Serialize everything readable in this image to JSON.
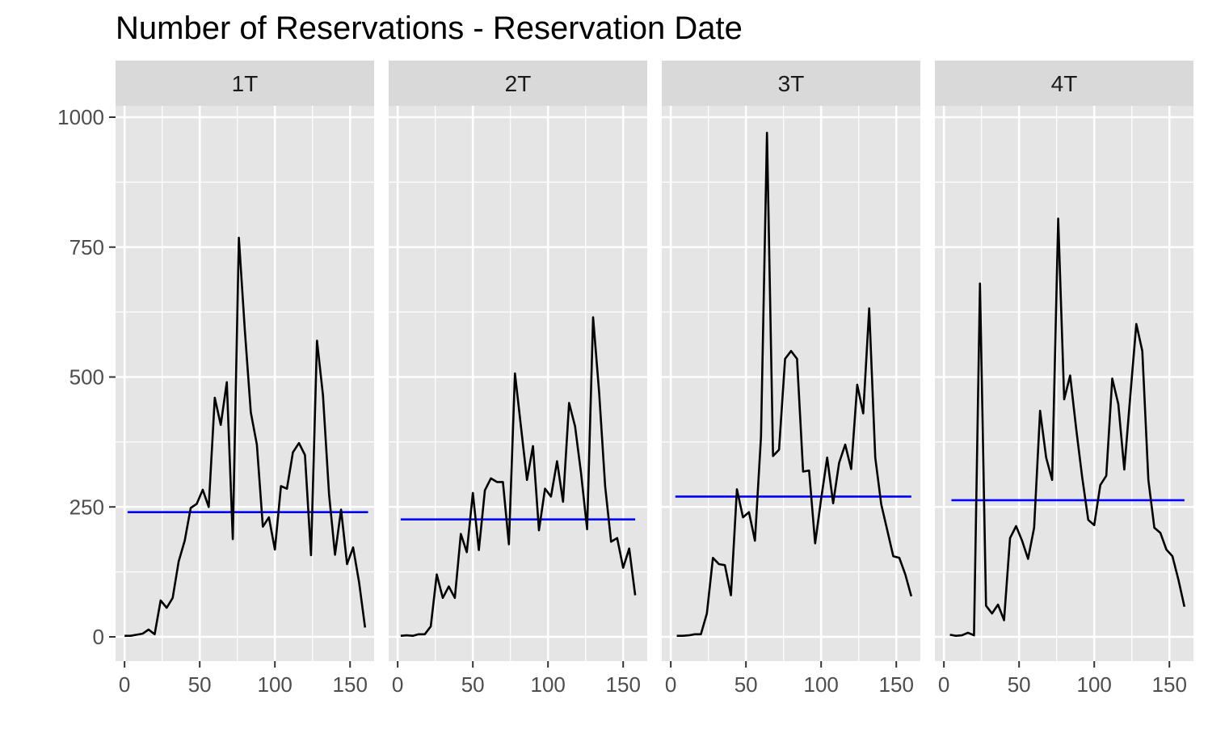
{
  "chart_data": {
    "type": "line",
    "title": "Number of Reservations - Reservation Date",
    "xlabel": "",
    "ylabel": "",
    "xlim": [
      -6,
      166
    ],
    "ylim": [
      -45,
      1000
    ],
    "x_ticks": [
      0,
      50,
      100,
      150
    ],
    "y_ticks": [
      0,
      250,
      500,
      750,
      1000
    ],
    "grid": true,
    "colors": {
      "panel_bg": "#E5E5E5",
      "strip_bg": "#D9D9D9",
      "grid": "#FFFFFF",
      "series_line": "#000000",
      "mean_line": "#0000FF",
      "text": "#4D4D4D",
      "title": "#000000"
    },
    "panels": [
      {
        "label": "1T",
        "mean": 240,
        "mean_x": [
          2,
          162
        ],
        "x": [
          0,
          4,
          8,
          12,
          16,
          20,
          24,
          28,
          32,
          36,
          40,
          44,
          48,
          52,
          56,
          60,
          64,
          68,
          72,
          76,
          80,
          84,
          88,
          92,
          96,
          100,
          104,
          108,
          112,
          116,
          120,
          124,
          128,
          132,
          136,
          140,
          144,
          148,
          152,
          156,
          160
        ],
        "y": [
          2,
          2,
          4,
          6,
          14,
          5,
          70,
          56,
          75,
          145,
          185,
          248,
          256,
          283,
          250,
          460,
          408,
          490,
          188,
          768,
          590,
          432,
          370,
          212,
          230,
          168,
          290,
          285,
          355,
          373,
          350,
          157,
          570,
          465,
          275,
          158,
          245,
          140,
          172,
          105,
          18
        ]
      },
      {
        "label": "2T",
        "mean": 226,
        "mean_x": [
          2,
          158
        ],
        "x": [
          2,
          6,
          10,
          14,
          18,
          22,
          26,
          30,
          34,
          38,
          42,
          46,
          50,
          54,
          58,
          62,
          66,
          70,
          74,
          78,
          82,
          86,
          90,
          94,
          98,
          102,
          106,
          110,
          114,
          118,
          122,
          126,
          130,
          134,
          138,
          142,
          146,
          150,
          154,
          158
        ],
        "y": [
          2,
          3,
          2,
          5,
          5,
          20,
          120,
          75,
          97,
          75,
          198,
          163,
          277,
          167,
          282,
          305,
          298,
          298,
          178,
          507,
          405,
          302,
          367,
          205,
          285,
          270,
          338,
          260,
          450,
          405,
          315,
          207,
          615,
          470,
          290,
          183,
          190,
          133,
          170,
          80
        ]
      },
      {
        "label": "3T",
        "mean": 270,
        "mean_x": [
          3,
          160
        ],
        "x": [
          4,
          8,
          12,
          16,
          20,
          24,
          28,
          32,
          36,
          40,
          44,
          48,
          52,
          56,
          60,
          64,
          68,
          72,
          76,
          80,
          84,
          88,
          92,
          96,
          100,
          104,
          108,
          112,
          116,
          120,
          124,
          128,
          132,
          136,
          140,
          144,
          148,
          152,
          156,
          160
        ],
        "y": [
          2,
          2,
          3,
          5,
          5,
          45,
          152,
          140,
          138,
          80,
          284,
          230,
          240,
          185,
          385,
          970,
          348,
          360,
          535,
          550,
          535,
          318,
          320,
          180,
          265,
          345,
          257,
          335,
          370,
          323,
          485,
          430,
          632,
          345,
          255,
          205,
          155,
          152,
          120,
          78
        ]
      },
      {
        "label": "4T",
        "mean": 263,
        "mean_x": [
          5,
          160
        ],
        "x": [
          4,
          8,
          12,
          16,
          20,
          24,
          28,
          32,
          36,
          40,
          44,
          48,
          52,
          56,
          60,
          64,
          68,
          72,
          76,
          80,
          84,
          88,
          92,
          96,
          100,
          104,
          108,
          112,
          116,
          120,
          124,
          128,
          132,
          136,
          140,
          144,
          148,
          152,
          156,
          160
        ],
        "y": [
          4,
          2,
          3,
          8,
          3,
          680,
          60,
          45,
          62,
          32,
          190,
          213,
          185,
          150,
          210,
          435,
          345,
          302,
          805,
          457,
          503,
          400,
          307,
          225,
          215,
          292,
          310,
          497,
          448,
          322,
          465,
          602,
          550,
          302,
          210,
          200,
          168,
          155,
          110,
          58
        ]
      }
    ]
  }
}
